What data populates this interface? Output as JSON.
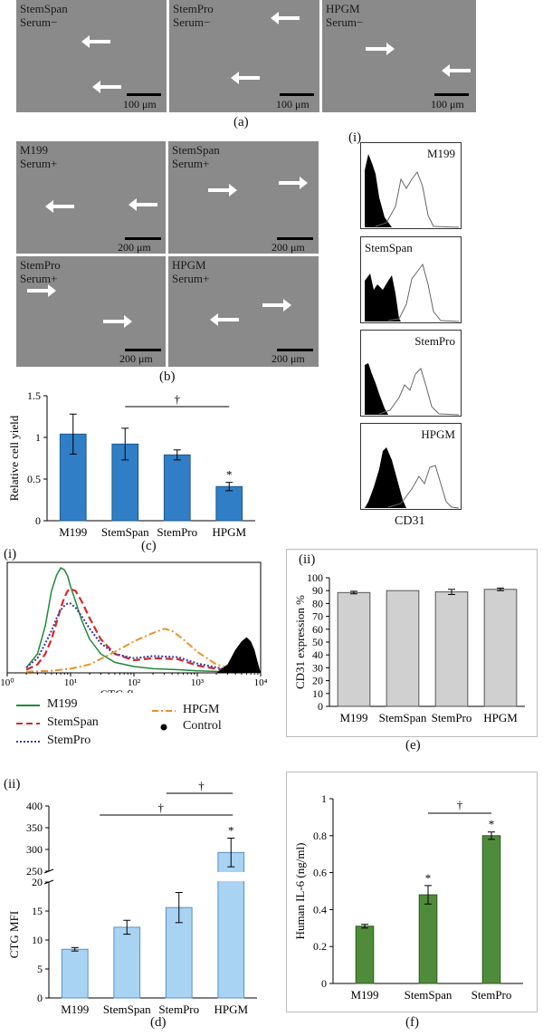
{
  "panel_a": {
    "caption": "(a)",
    "images": [
      {
        "label": "StemSpan\nSerum−",
        "scale": "100 μm"
      },
      {
        "label": "StemPro\nSerum−",
        "scale": "100 μm"
      },
      {
        "label": "HPGM\nSerum−",
        "scale": "100 μm"
      }
    ]
  },
  "panel_b": {
    "caption": "(b)",
    "images": [
      {
        "label": "M199\nSerum+",
        "scale": "200 μm"
      },
      {
        "label": "StemSpan\nSerum+",
        "scale": "200 μm"
      },
      {
        "label": "StemPro\nSerum+",
        "scale": "200 μm"
      },
      {
        "label": "HPGM\nSerum+",
        "scale": "200 μm"
      }
    ]
  },
  "panel_b_hist": {
    "roman": "(i)",
    "xlabel": "CD31",
    "labels": [
      "M199",
      "StemSpan",
      "StemPro",
      "HPGM"
    ]
  },
  "panel_c": {
    "caption": "(c)"
  },
  "panel_e_i": {
    "roman": "(i)"
  },
  "panel_e_ii": {
    "roman": "(ii)"
  },
  "panel_e": {
    "caption": "(e)"
  },
  "panel_d": {
    "roman": "(ii)",
    "caption": "(d)"
  },
  "panel_f": {
    "caption": "(f)"
  },
  "legend": {
    "items": [
      {
        "name": "M199",
        "color": "#1f8a3a",
        "style": "solid"
      },
      {
        "name": "StemSpan",
        "color": "#d42a2a",
        "style": "dashed"
      },
      {
        "name": "StemPro",
        "color": "#3a3aa8",
        "style": "dotted"
      },
      {
        "name": "HPGM",
        "color": "#e8932e",
        "style": "dashdot"
      },
      {
        "name": "Control",
        "color": "#000000",
        "style": "filled"
      }
    ]
  },
  "chart_data": [
    {
      "type": "bar",
      "panel": "c",
      "categories": [
        "M199",
        "StemSpan",
        "StemPro",
        "HPGM"
      ],
      "values": [
        1.04,
        0.92,
        0.79,
        0.41
      ],
      "errors": [
        0.24,
        0.19,
        0.06,
        0.05
      ],
      "ylabel": "Relative cell yield",
      "ylim": [
        0,
        1.5
      ],
      "yticks": [
        "0",
        "0.5",
        "1",
        "1.5"
      ],
      "significance": [
        {
          "from": "StemSpan",
          "to": "HPGM",
          "mark": "†"
        }
      ],
      "star": [
        "",
        "",
        "",
        "*"
      ],
      "color": "#2f7ec6"
    },
    {
      "type": "line",
      "panel": "e(i)",
      "xlabel": "CTG fluorescence",
      "xscale": "log",
      "xticks": [
        "10⁰",
        "10¹",
        "10²",
        "10³",
        "10⁴"
      ],
      "series": [
        {
          "name": "M199",
          "x": [
            2,
            3,
            4,
            5,
            6,
            7,
            8,
            9,
            10,
            12,
            15,
            20,
            30,
            50,
            100,
            200,
            500,
            1000,
            3000,
            10000
          ],
          "y": [
            5,
            18,
            45,
            78,
            93,
            100,
            98,
            92,
            82,
            68,
            50,
            32,
            18,
            10,
            6,
            4,
            3,
            2,
            1,
            0
          ]
        },
        {
          "name": "StemSpan",
          "x": [
            2,
            3,
            4,
            5,
            6,
            7,
            8,
            9,
            10,
            12,
            15,
            20,
            30,
            50,
            100,
            200,
            500,
            1000,
            3000,
            10000
          ],
          "y": [
            3,
            8,
            18,
            32,
            48,
            62,
            72,
            78,
            80,
            78,
            68,
            52,
            32,
            18,
            12,
            14,
            13,
            7,
            2,
            0
          ]
        },
        {
          "name": "StemPro",
          "x": [
            2,
            3,
            4,
            5,
            6,
            7,
            8,
            9,
            10,
            12,
            15,
            20,
            30,
            50,
            100,
            200,
            500,
            1000,
            3000,
            10000
          ],
          "y": [
            5,
            14,
            28,
            40,
            52,
            60,
            64,
            66,
            66,
            62,
            54,
            42,
            28,
            18,
            14,
            16,
            15,
            9,
            3,
            0
          ]
        },
        {
          "name": "HPGM",
          "x": [
            2,
            5,
            10,
            20,
            50,
            100,
            200,
            300,
            400,
            600,
            1000,
            2000,
            5000,
            10000
          ],
          "y": [
            1,
            2,
            4,
            8,
            20,
            30,
            38,
            42,
            40,
            32,
            20,
            8,
            2,
            0
          ]
        },
        {
          "name": "Control",
          "x": [
            2000,
            3000,
            4000,
            5000,
            6000,
            7000,
            8000,
            9000,
            10000
          ],
          "y": [
            0,
            8,
            22,
            30,
            34,
            30,
            22,
            10,
            0
          ]
        }
      ]
    },
    {
      "type": "bar",
      "panel": "e(ii)",
      "categories": [
        "M199",
        "StemSpan",
        "StemPro",
        "HPGM"
      ],
      "values": [
        88.5,
        90,
        89,
        91
      ],
      "errors": [
        1,
        0,
        2,
        1
      ],
      "ylabel": "CD31 expression %",
      "ylim": [
        0,
        100
      ],
      "yticks": [
        "0",
        "10",
        "20",
        "30",
        "40",
        "50",
        "60",
        "70",
        "80",
        "90",
        "100"
      ],
      "color": "#d0d0d0"
    },
    {
      "type": "bar",
      "panel": "d",
      "categories": [
        "M199",
        "StemSpan",
        "StemPro",
        "HPGM"
      ],
      "values": [
        8.4,
        12.2,
        15.6,
        293
      ],
      "errors": [
        0.3,
        1.2,
        2.6,
        33
      ],
      "ylabel": "CTG MFI",
      "yaxis_break": true,
      "lower_ticks": [
        "0",
        "5",
        "10",
        "15",
        "20"
      ],
      "upper_ticks": [
        "250",
        "300",
        "350",
        "400"
      ],
      "significance": [
        {
          "from": "StemPro",
          "to": "HPGM",
          "mark": "†"
        },
        {
          "from": "StemSpan",
          "to": "HPGM",
          "mark": "†"
        }
      ],
      "star": [
        "",
        "",
        "",
        "*"
      ],
      "color": "#a9d3f3"
    },
    {
      "type": "bar",
      "panel": "f",
      "categories": [
        "M199",
        "StemSpan",
        "StemPro"
      ],
      "values": [
        0.31,
        0.48,
        0.8
      ],
      "errors": [
        0.01,
        0.05,
        0.02
      ],
      "ylabel": "Human IL-6 (ng/ml)",
      "ylim": [
        0,
        1
      ],
      "yticks": [
        "0",
        "0.2",
        "0.4",
        "0.6",
        "0.8",
        "1"
      ],
      "significance": [
        {
          "from": "StemSpan",
          "to": "StemPro",
          "mark": "†"
        }
      ],
      "star": [
        "",
        "*",
        "*"
      ],
      "color": "#4f8c3a"
    }
  ]
}
